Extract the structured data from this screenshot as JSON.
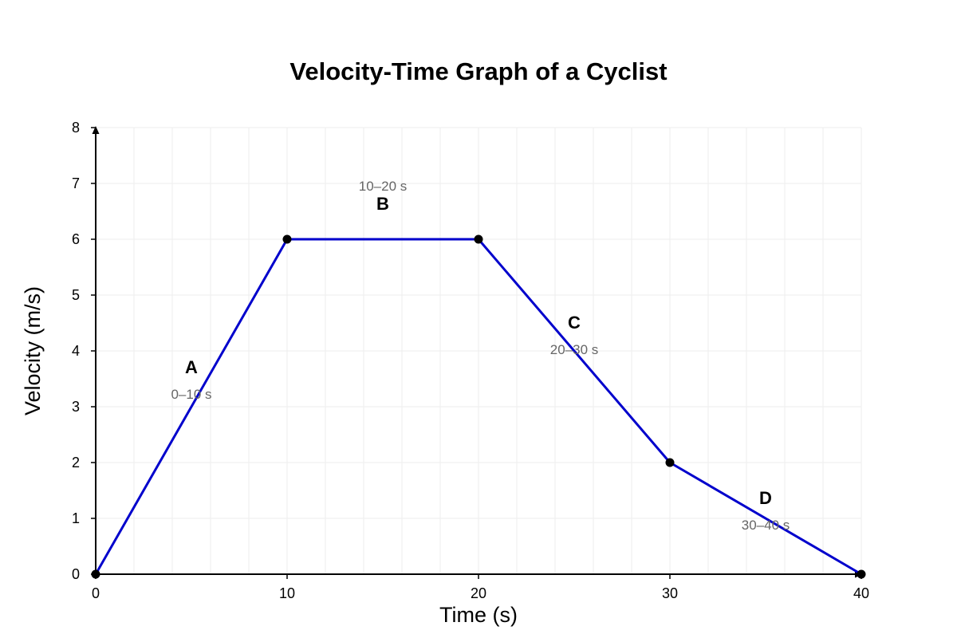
{
  "chart_data": {
    "type": "line",
    "title": "Velocity-Time Graph of a Cyclist",
    "xlabel": "Time (s)",
    "ylabel": "Velocity (m/s)",
    "xlim": [
      0,
      40
    ],
    "ylim": [
      0,
      8
    ],
    "x_ticks": [
      0,
      10,
      20,
      30,
      40
    ],
    "y_ticks": [
      0,
      1,
      2,
      3,
      4,
      5,
      6,
      7,
      8
    ],
    "grid": true,
    "line_color": "#0000cc",
    "point_color": "#000000",
    "series": [
      {
        "x": [
          0,
          10,
          20,
          30,
          40
        ],
        "y": [
          0,
          6,
          6,
          2,
          0
        ]
      }
    ],
    "segments": [
      {
        "label": "A",
        "range": "0–10 s"
      },
      {
        "label": "B",
        "range": "10–20 s"
      },
      {
        "label": "C",
        "range": "20–30 s"
      },
      {
        "label": "D",
        "range": "30–40 s"
      }
    ]
  }
}
